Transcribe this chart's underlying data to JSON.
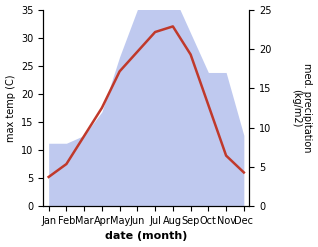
{
  "months": [
    "Jan",
    "Feb",
    "Mar",
    "Apr",
    "May",
    "Jun",
    "Jul",
    "Aug",
    "Sep",
    "Oct",
    "Nov",
    "Dec"
  ],
  "temperature": [
    5.2,
    7.5,
    12.5,
    17.5,
    24.0,
    27.5,
    31.0,
    32.0,
    27.0,
    18.0,
    9.0,
    6.0
  ],
  "precipitation": [
    8.0,
    8.0,
    9.0,
    12.0,
    19.0,
    25.0,
    28.0,
    27.0,
    22.0,
    17.0,
    17.0,
    9.0
  ],
  "temp_color": "#c0392b",
  "precip_color": "#b8c4ee",
  "temp_ylim": [
    0,
    35
  ],
  "precip_ylim": [
    0,
    25
  ],
  "temp_yticks": [
    0,
    5,
    10,
    15,
    20,
    25,
    30,
    35
  ],
  "precip_yticks": [
    0,
    5,
    10,
    15,
    20,
    25
  ],
  "xlabel": "date (month)",
  "ylabel_left": "max temp (C)",
  "ylabel_right": "med. precipitation\n(kg/m2)"
}
